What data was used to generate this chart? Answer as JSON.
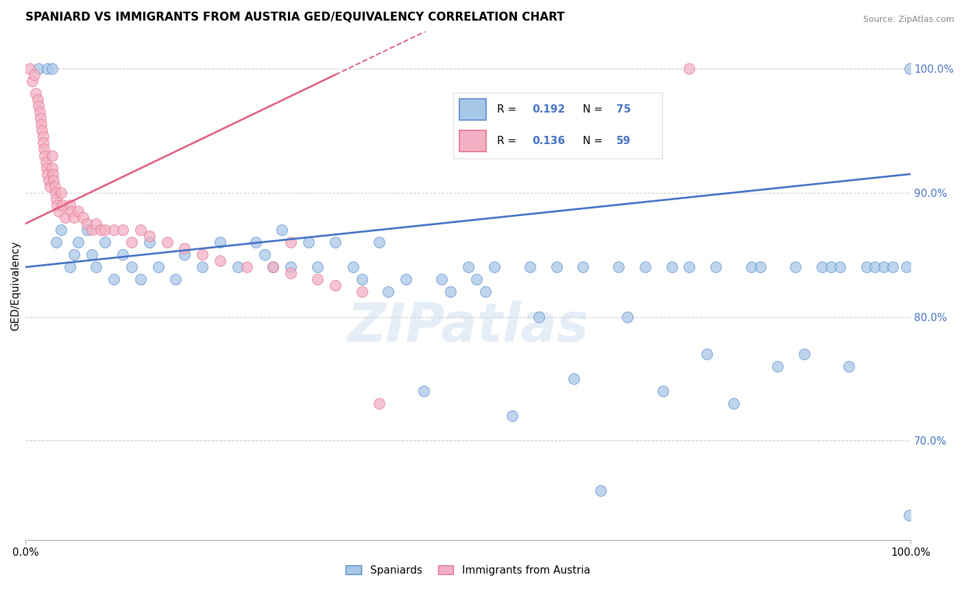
{
  "title": "SPANIARD VS IMMIGRANTS FROM AUSTRIA GED/EQUIVALENCY CORRELATION CHART",
  "source": "Source: ZipAtlas.com",
  "ylabel": "GED/Equivalency",
  "yticks": [
    70.0,
    80.0,
    90.0,
    100.0
  ],
  "ytick_labels": [
    "70.0%",
    "80.0%",
    "90.0%",
    "100.0%"
  ],
  "xmin": 0.0,
  "xmax": 100.0,
  "ymin": 62.0,
  "ymax": 103.0,
  "blue_R": 0.192,
  "blue_N": 75,
  "pink_R": 0.136,
  "pink_N": 59,
  "blue_scatter_color": "#a8c8e8",
  "blue_edge_color": "#5588cc",
  "blue_line_color": "#4472c4",
  "pink_scatter_color": "#f4b0c4",
  "pink_edge_color": "#e07090",
  "pink_line_color": "#e06080",
  "legend_label_blue": "Spaniards",
  "legend_label_pink": "Immigrants from Austria",
  "watermark": "ZIPatlas",
  "legend_box_color": "#e8f0fb",
  "legend_box_edge": "#cccccc",
  "blue_scatter_x": [
    1.5,
    2.5,
    3.0,
    3.5,
    4.0,
    5.0,
    5.5,
    6.0,
    7.0,
    7.5,
    8.0,
    9.0,
    10.0,
    11.0,
    12.0,
    13.0,
    14.0,
    15.0,
    17.0,
    18.0,
    20.0,
    22.0,
    24.0,
    26.0,
    27.0,
    28.0,
    29.0,
    30.0,
    32.0,
    33.0,
    35.0,
    37.0,
    38.0,
    40.0,
    41.0,
    43.0,
    45.0,
    47.0,
    48.0,
    50.0,
    51.0,
    52.0,
    53.0,
    55.0,
    57.0,
    58.0,
    60.0,
    62.0,
    63.0,
    65.0,
    67.0,
    68.0,
    70.0,
    72.0,
    73.0,
    75.0,
    77.0,
    78.0,
    80.0,
    82.0,
    83.0,
    85.0,
    87.0,
    88.0,
    90.0,
    91.0,
    92.0,
    93.0,
    95.0,
    96.0,
    97.0,
    98.0,
    99.5,
    99.8,
    99.9
  ],
  "blue_scatter_y": [
    100.0,
    100.0,
    100.0,
    86.0,
    87.0,
    84.0,
    85.0,
    86.0,
    87.0,
    85.0,
    84.0,
    86.0,
    83.0,
    85.0,
    84.0,
    83.0,
    86.0,
    84.0,
    83.0,
    85.0,
    84.0,
    86.0,
    84.0,
    86.0,
    85.0,
    84.0,
    87.0,
    84.0,
    86.0,
    84.0,
    86.0,
    84.0,
    83.0,
    86.0,
    82.0,
    83.0,
    74.0,
    83.0,
    82.0,
    84.0,
    83.0,
    82.0,
    84.0,
    72.0,
    84.0,
    80.0,
    84.0,
    75.0,
    84.0,
    66.0,
    84.0,
    80.0,
    84.0,
    74.0,
    84.0,
    84.0,
    77.0,
    84.0,
    73.0,
    84.0,
    84.0,
    76.0,
    84.0,
    77.0,
    84.0,
    84.0,
    84.0,
    76.0,
    84.0,
    84.0,
    84.0,
    84.0,
    84.0,
    64.0,
    100.0
  ],
  "pink_scatter_x": [
    0.5,
    0.8,
    1.0,
    1.2,
    1.4,
    1.5,
    1.6,
    1.7,
    1.8,
    1.9,
    2.0,
    2.0,
    2.1,
    2.2,
    2.3,
    2.4,
    2.5,
    2.6,
    2.8,
    3.0,
    3.0,
    3.1,
    3.2,
    3.3,
    3.4,
    3.5,
    3.6,
    3.8,
    4.0,
    4.2,
    4.5,
    5.0,
    5.2,
    5.5,
    6.0,
    6.5,
    7.0,
    7.5,
    8.0,
    8.5,
    9.0,
    10.0,
    11.0,
    12.0,
    13.0,
    14.0,
    16.0,
    18.0,
    20.0,
    22.0,
    25.0,
    28.0,
    30.0,
    33.0,
    35.0,
    38.0,
    40.0,
    75.0,
    30.0
  ],
  "pink_scatter_y": [
    100.0,
    99.0,
    99.5,
    98.0,
    97.5,
    97.0,
    96.5,
    96.0,
    95.5,
    95.0,
    94.5,
    94.0,
    93.5,
    93.0,
    92.5,
    92.0,
    91.5,
    91.0,
    90.5,
    93.0,
    92.0,
    91.5,
    91.0,
    90.5,
    90.0,
    89.5,
    89.0,
    88.5,
    90.0,
    89.0,
    88.0,
    89.0,
    88.5,
    88.0,
    88.5,
    88.0,
    87.5,
    87.0,
    87.5,
    87.0,
    87.0,
    87.0,
    87.0,
    86.0,
    87.0,
    86.5,
    86.0,
    85.5,
    85.0,
    84.5,
    84.0,
    84.0,
    83.5,
    83.0,
    82.5,
    82.0,
    73.0,
    100.0,
    86.0
  ]
}
